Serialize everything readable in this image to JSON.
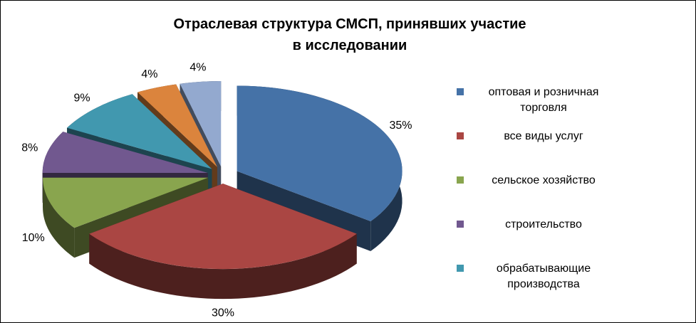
{
  "chart_data": {
    "type": "pie3d",
    "title": "Отраслевая структура СМСП, принявших участие\nв исследовании",
    "categories": [
      "оптовая и розничная торговля",
      "все виды услуг",
      "сельское хозяйство",
      "строительство",
      "обрабатывающие производства",
      null,
      null
    ],
    "values": [
      35,
      30,
      10,
      8,
      9,
      4,
      4
    ],
    "value_labels": [
      "35%",
      "30%",
      "10%",
      "8%",
      "9%",
      "4%",
      "4%"
    ],
    "colors": [
      "#4572a7",
      "#aa4643",
      "#89a54e",
      "#71588f",
      "#4198af",
      "#db843d",
      "#93a9cf"
    ],
    "legend": "right"
  }
}
